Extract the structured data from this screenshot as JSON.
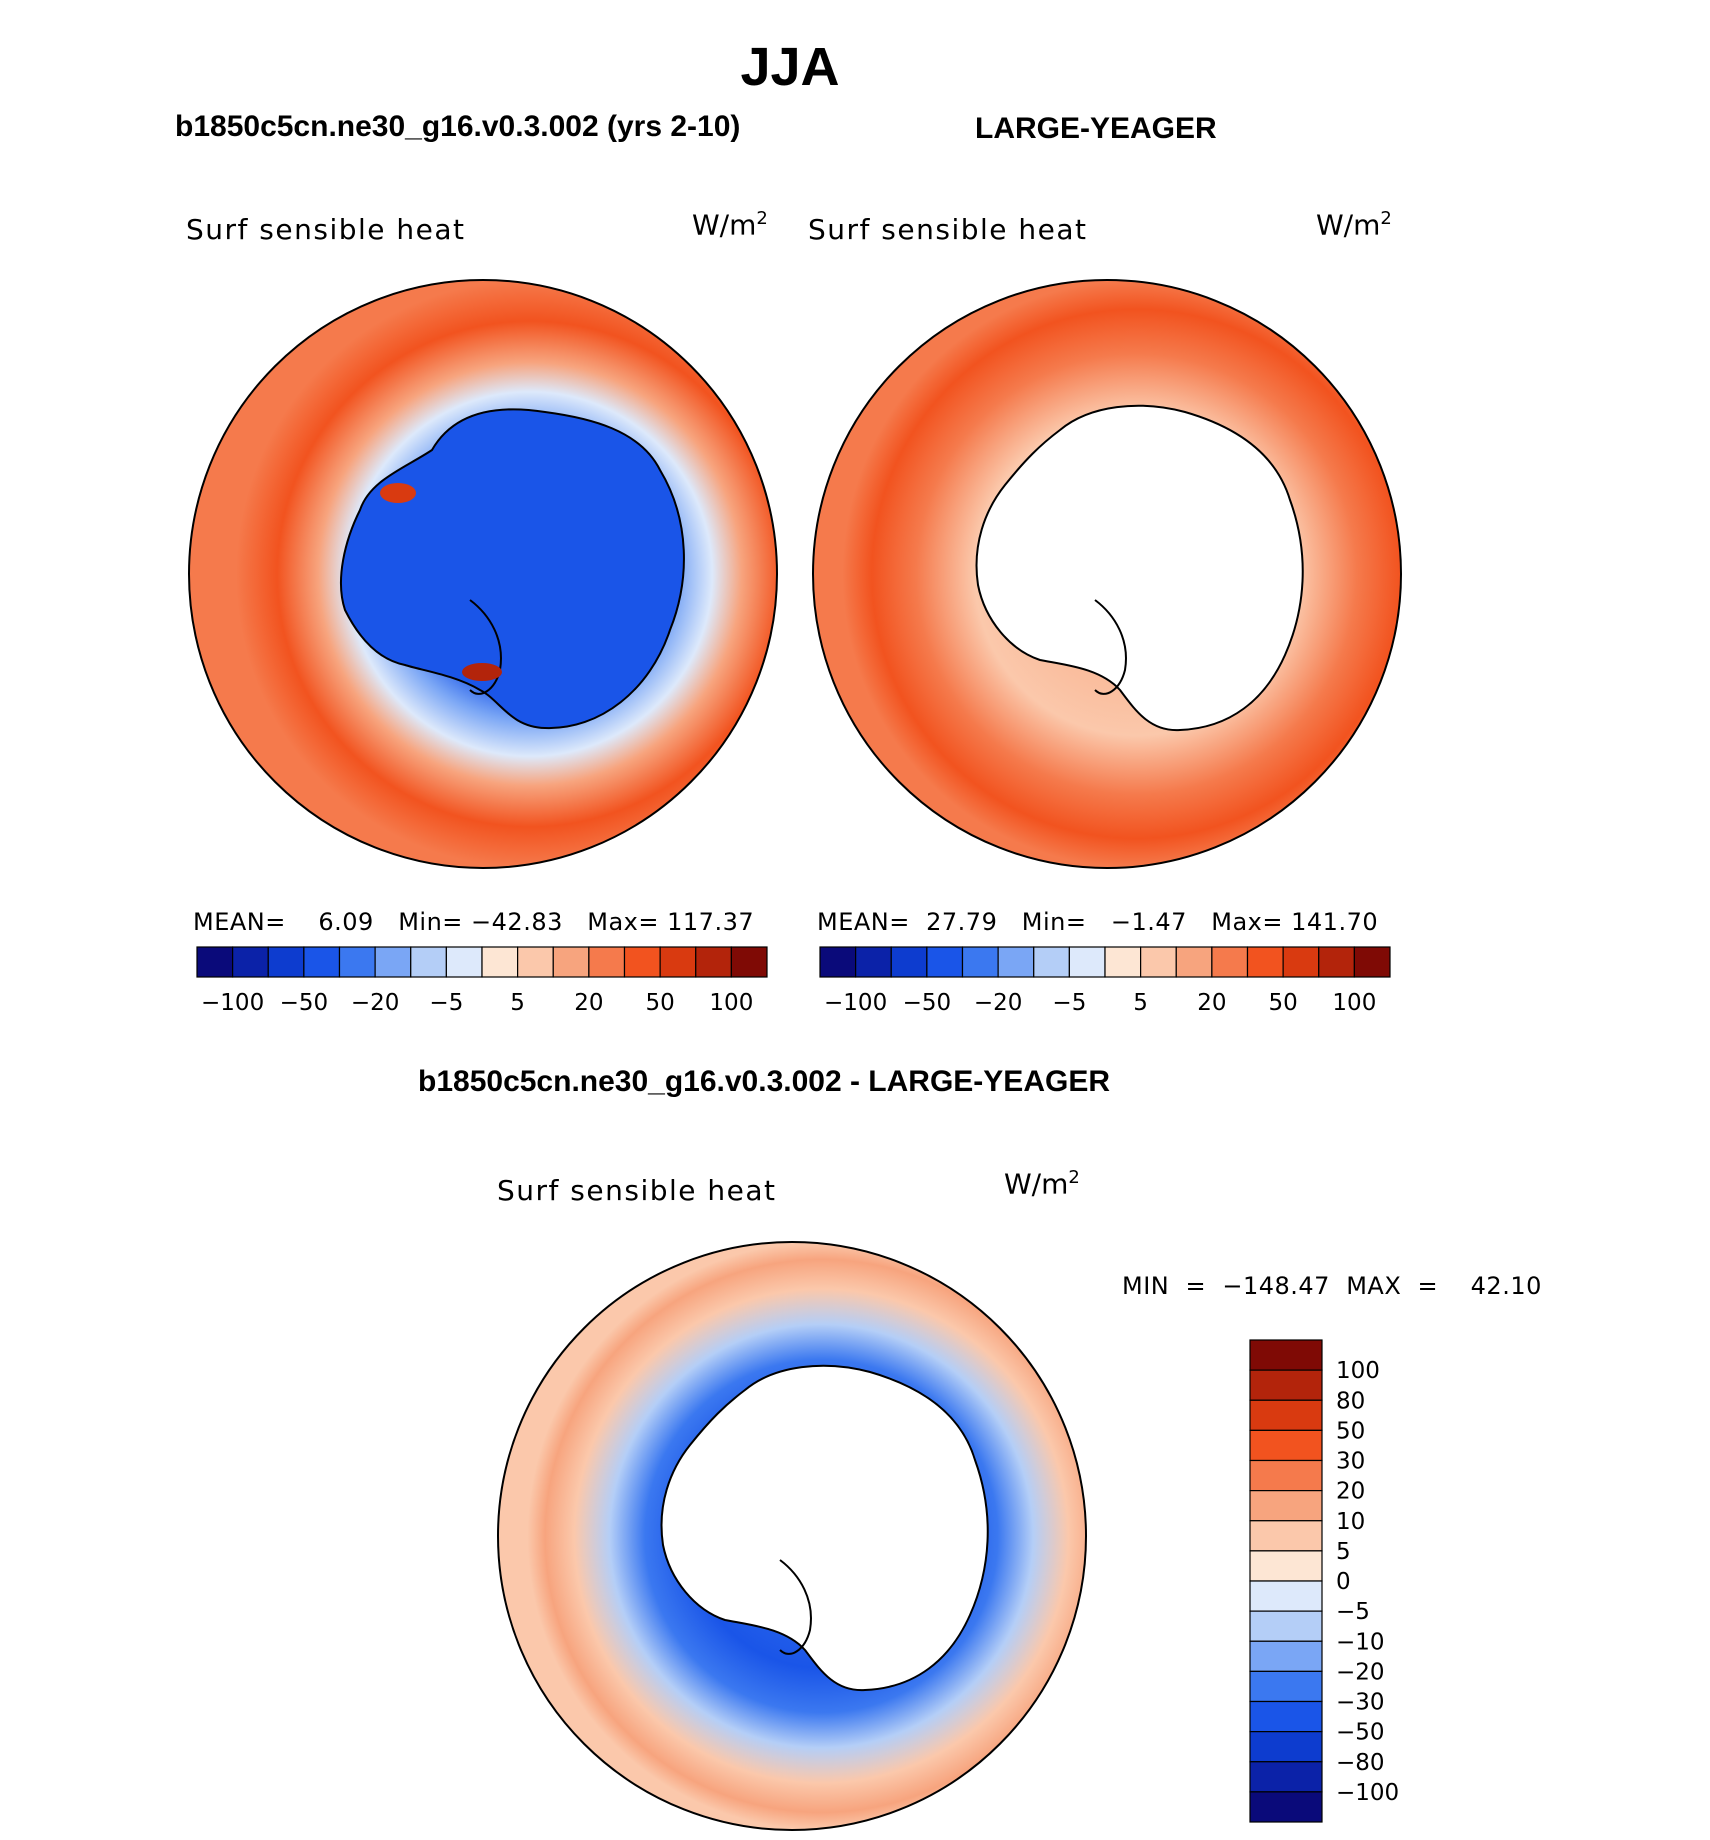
{
  "page": {
    "title": "JJA",
    "left_title": "b1850c5cn.ne30_g16.v0.3.002 (yrs 2-10)",
    "right_title": "LARGE-YEAGER",
    "diff_title": "b1850c5cn.ne30_g16.v0.3.002 - LARGE-YEAGER"
  },
  "panels": [
    {
      "variable": "Surf  sensible  heat",
      "units_base": "W/m",
      "units_exp": "2",
      "mean_label": "MEAN=",
      "mean": "6.09",
      "min_label": "Min=",
      "min": "−42.83",
      "max_label": "Max=",
      "max": "117.37"
    },
    {
      "variable": "Surf  sensible  heat",
      "units_base": "W/m",
      "units_exp": "2",
      "mean_label": "MEAN=",
      "mean": "27.79",
      "min_label": "Min=",
      "min": "−1.47",
      "max_label": "Max=",
      "max": "141.70"
    },
    {
      "variable": "Surf  sensible  heat",
      "units_base": "W/m",
      "units_exp": "2",
      "minmax": "MIN  =  −148.47  MAX  =    42.10"
    }
  ],
  "colorbar_horizontal": {
    "colors": [
      "#0a0a7a",
      "#0b22a8",
      "#0d3ccf",
      "#1a55e8",
      "#3b78f0",
      "#7aa6f5",
      "#b4cef7",
      "#dde9fb",
      "#fde6d4",
      "#fbc8ab",
      "#f7a47e",
      "#f57a4c",
      "#f2531f",
      "#d93a10",
      "#b3240b",
      "#7f0a05"
    ],
    "labels": [
      "−100",
      "−50",
      "−20",
      "−5",
      "5",
      "20",
      "50",
      "100"
    ]
  },
  "colorbar_vertical": {
    "colors": [
      "#7f0a05",
      "#b3240b",
      "#d93a10",
      "#f2531f",
      "#f57a4c",
      "#f7a47e",
      "#fbc8ab",
      "#fde6d4",
      "#dde9fb",
      "#b4cef7",
      "#7aa6f5",
      "#3b78f0",
      "#1a55e8",
      "#0d3ccf",
      "#0b22a8",
      "#0a0a7a"
    ],
    "labels": [
      "100",
      "80",
      "50",
      "30",
      "20",
      "10",
      "5",
      "0",
      "−5",
      "−10",
      "−20",
      "−30",
      "−50",
      "−80",
      "−100"
    ]
  }
}
